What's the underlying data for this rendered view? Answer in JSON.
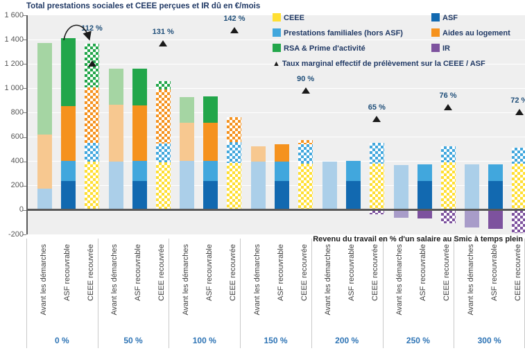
{
  "title": "Total prestations sociales et CEEE perçues et IR dû en €/mois",
  "x_axis_title": "Revenu du travail en % d'un salaire au Smic à temps plein",
  "y_axis": {
    "min": -200,
    "max": 1600,
    "step": 200,
    "tick_labels": [
      "1 600",
      "1 400",
      "1 200",
      "1 000",
      "800",
      "600",
      "400",
      "200",
      "0",
      "-200"
    ]
  },
  "series": {
    "CEEE": {
      "label": "CEEE",
      "color": "#ffdf33",
      "faded": "#fcefa8"
    },
    "ASF": {
      "label": "ASF",
      "color": "#1269b0",
      "faded": "#9dc3e6"
    },
    "PF": {
      "label": "Prestations familiales (hors ASF)",
      "color": "#41a7dd",
      "faded": "#abcfe9"
    },
    "AL": {
      "label": "Aides au logement",
      "color": "#f5921e",
      "faded": "#f7c890"
    },
    "RSA": {
      "label": "RSA & Prime d'activité",
      "color": "#22a64a",
      "faded": "#a5d5a3"
    },
    "IR": {
      "label": "IR",
      "color": "#7d529e",
      "faded": "#a89cc9"
    }
  },
  "legend": {
    "rows": [
      [
        "CEEE",
        "ASF"
      ],
      [
        "PF",
        "AL"
      ],
      [
        "RSA",
        "IR"
      ]
    ],
    "marker_symbol": "▲",
    "marker_label": "Taux marginal effectif de prélèvement sur la CEEE / ASF"
  },
  "annotation_arrow": {
    "from_bar": "ASF recouvrable",
    "to_bar": "CEEE recouvrée",
    "group": "0 %"
  },
  "chart_data": {
    "type": "bar",
    "stacked": true,
    "unit": "€/mois",
    "bar_labels": [
      "Avant les démarches",
      "ASF recouvrable",
      "CEEE recouvrée"
    ],
    "ylim": [
      -200,
      1600
    ],
    "groups": [
      {
        "label": "0 %",
        "marker": {
          "label": "112 %",
          "value": 1205
        },
        "bars": [
          {
            "label": "Avant les démarches",
            "style": "faded",
            "segments": [
              {
                "s": "PF",
                "v": 175
              },
              {
                "s": "AL",
                "v": 445
              },
              {
                "s": "RSA",
                "v": 750
              }
            ]
          },
          {
            "label": "ASF recouvrable",
            "style": "solid",
            "segments": [
              {
                "s": "ASF",
                "v": 240
              },
              {
                "s": "PF",
                "v": 165
              },
              {
                "s": "AL",
                "v": 450
              },
              {
                "s": "RSA",
                "v": 555
              }
            ]
          },
          {
            "label": "CEEE recouvrée",
            "style": "checker",
            "segments": [
              {
                "s": "CEEE",
                "v": 400
              },
              {
                "s": "PF",
                "v": 150
              },
              {
                "s": "AL",
                "v": 455
              },
              {
                "s": "RSA",
                "v": 360
              }
            ]
          }
        ]
      },
      {
        "label": "50 %",
        "marker": {
          "label": "131 %",
          "value": 1370
        },
        "bars": [
          {
            "label": "Avant les démarches",
            "style": "faded",
            "segments": [
              {
                "s": "PF",
                "v": 400
              },
              {
                "s": "AL",
                "v": 465
              },
              {
                "s": "RSA",
                "v": 295
              }
            ]
          },
          {
            "label": "ASF recouvrable",
            "style": "solid",
            "segments": [
              {
                "s": "ASF",
                "v": 240
              },
              {
                "s": "PF",
                "v": 165
              },
              {
                "s": "AL",
                "v": 455
              },
              {
                "s": "RSA",
                "v": 300
              }
            ]
          },
          {
            "label": "CEEE recouvrée",
            "style": "checker",
            "segments": [
              {
                "s": "CEEE",
                "v": 390
              },
              {
                "s": "PF",
                "v": 155
              },
              {
                "s": "AL",
                "v": 445
              },
              {
                "s": "RSA",
                "v": 70
              }
            ]
          }
        ]
      },
      {
        "label": "100 %",
        "marker": {
          "label": "142 %",
          "value": 1480
        },
        "bars": [
          {
            "label": "Avant les démarches",
            "style": "faded",
            "segments": [
              {
                "s": "PF",
                "v": 405
              },
              {
                "s": "AL",
                "v": 310
              },
              {
                "s": "RSA",
                "v": 215
              }
            ]
          },
          {
            "label": "ASF recouvrable",
            "style": "solid",
            "segments": [
              {
                "s": "ASF",
                "v": 240
              },
              {
                "s": "PF",
                "v": 165
              },
              {
                "s": "AL",
                "v": 310
              },
              {
                "s": "RSA",
                "v": 220
              }
            ]
          },
          {
            "label": "CEEE recouvrée",
            "style": "checker",
            "segments": [
              {
                "s": "CEEE",
                "v": 385
              },
              {
                "s": "PF",
                "v": 170
              },
              {
                "s": "AL",
                "v": 210
              }
            ]
          }
        ]
      },
      {
        "label": "150 %",
        "marker": {
          "label": "90 %",
          "value": 985
        },
        "bars": [
          {
            "label": "Avant les démarches",
            "style": "faded",
            "segments": [
              {
                "s": "PF",
                "v": 400
              },
              {
                "s": "AL",
                "v": 125
              }
            ]
          },
          {
            "label": "ASF recouvrable",
            "style": "solid",
            "segments": [
              {
                "s": "ASF",
                "v": 240
              },
              {
                "s": "PF",
                "v": 160
              },
              {
                "s": "AL",
                "v": 140
              }
            ]
          },
          {
            "label": "CEEE recouvrée",
            "style": "checker",
            "segments": [
              {
                "s": "CEEE",
                "v": 380
              },
              {
                "s": "PF",
                "v": 160
              },
              {
                "s": "AL",
                "v": 35
              }
            ]
          }
        ]
      },
      {
        "label": "200 %",
        "marker": {
          "label": "65 %",
          "value": 750
        },
        "bars": [
          {
            "label": "Avant les démarches",
            "style": "faded",
            "segments": [
              {
                "s": "PF",
                "v": 400
              }
            ]
          },
          {
            "label": "ASF recouvrable",
            "style": "solid",
            "segments": [
              {
                "s": "ASF",
                "v": 240
              },
              {
                "s": "PF",
                "v": 165
              }
            ]
          },
          {
            "label": "CEEE recouvrée",
            "style": "checker",
            "segments": [
              {
                "s": "CEEE",
                "v": 380
              },
              {
                "s": "PF",
                "v": 170
              },
              {
                "s": "IR",
                "v": -35
              }
            ]
          }
        ]
      },
      {
        "label": "250 %",
        "marker": {
          "label": "76 %",
          "value": 850
        },
        "bars": [
          {
            "label": "Avant les démarches",
            "style": "faded",
            "segments": [
              {
                "s": "PF",
                "v": 370
              },
              {
                "s": "IR",
                "v": -65
              }
            ]
          },
          {
            "label": "ASF recouvrable",
            "style": "solid",
            "segments": [
              {
                "s": "ASF",
                "v": 240
              },
              {
                "s": "PF",
                "v": 135
              },
              {
                "s": "IR",
                "v": -70
              }
            ]
          },
          {
            "label": "CEEE recouvrée",
            "style": "checker",
            "segments": [
              {
                "s": "CEEE",
                "v": 390
              },
              {
                "s": "PF",
                "v": 135
              },
              {
                "s": "IR",
                "v": -110
              }
            ]
          }
        ]
      },
      {
        "label": "300 %",
        "marker": {
          "label": "72 %",
          "value": 810
        },
        "bars": [
          {
            "label": "Avant les démarches",
            "style": "faded",
            "segments": [
              {
                "s": "PF",
                "v": 375
              },
              {
                "s": "IR",
                "v": -145
              }
            ]
          },
          {
            "label": "ASF recouvrable",
            "style": "solid",
            "segments": [
              {
                "s": "ASF",
                "v": 240
              },
              {
                "s": "PF",
                "v": 135
              },
              {
                "s": "IR",
                "v": -155
              }
            ]
          },
          {
            "label": "CEEE recouvrée",
            "style": "checker",
            "segments": [
              {
                "s": "CEEE",
                "v": 380
              },
              {
                "s": "PF",
                "v": 130
              },
              {
                "s": "IR",
                "v": -190
              }
            ]
          }
        ]
      }
    ]
  }
}
